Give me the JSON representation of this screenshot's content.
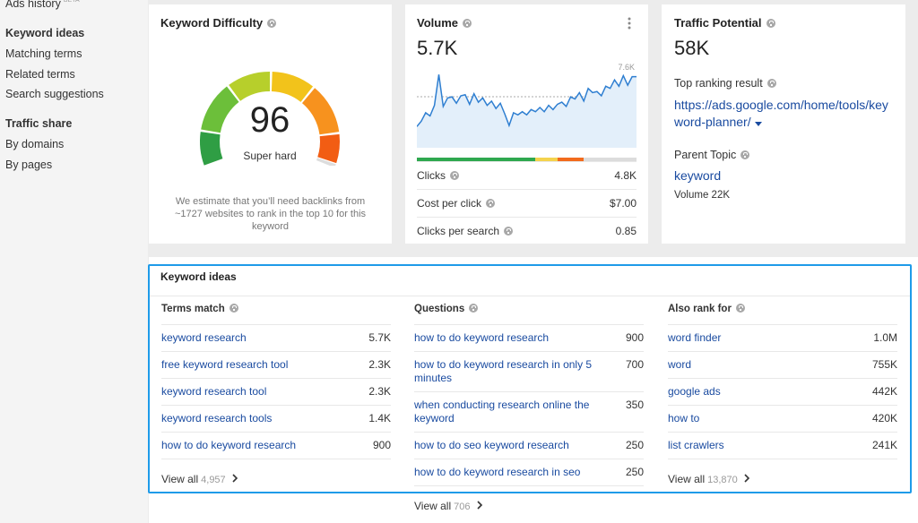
{
  "sidebar": {
    "top_item": {
      "label": "Ads history",
      "badge": "BETA"
    },
    "sections": [
      {
        "heading": "Keyword ideas",
        "items": [
          "Matching terms",
          "Related terms",
          "Search suggestions"
        ]
      },
      {
        "heading": "Traffic share",
        "items": [
          "By domains",
          "By pages"
        ]
      }
    ]
  },
  "difficulty": {
    "title": "Keyword Difficulty",
    "score": "96",
    "label": "Super hard",
    "note": "We estimate that you’ll need backlinks from ~1727 websites to rank in the top 10 for this keyword"
  },
  "volume": {
    "title": "Volume",
    "value": "5.7K",
    "trend": {
      "max": {
        "value": 7600,
        "label": "7.6K"
      },
      "values": [
        2000,
        2500,
        3300,
        3000,
        4000,
        6900,
        3900,
        4700,
        4800,
        4200,
        4900,
        5000,
        4100,
        5100,
        4300,
        4700,
        4000,
        4400,
        3700,
        4200,
        3200,
        2100,
        3300,
        3100,
        3400,
        3100,
        3600,
        3400,
        3800,
        3400,
        4000,
        3600,
        4100,
        4300,
        3900,
        4800,
        4600,
        5200,
        4400,
        5600,
        5200,
        5300,
        4900,
        5800,
        5600,
        6400,
        5800,
        6800,
        5900,
        6700,
        6700
      ]
    },
    "metrics": [
      [
        "Clicks",
        "4.8K"
      ],
      [
        "Cost per click",
        "$7.00"
      ],
      [
        "Clicks per search",
        "0.85"
      ]
    ]
  },
  "traffic_potential": {
    "title": "Traffic Potential",
    "value": "58K",
    "top_result_label": "Top ranking result",
    "top_result_url": "https://ads.google.com/home/tools/keyword-planner/",
    "parent_topic_label": "Parent Topic",
    "parent_topic": "keyword",
    "parent_volume": "Volume 22K"
  },
  "keyword_ideas": {
    "title": "Keyword ideas",
    "columns": [
      {
        "header": "Terms match",
        "rows": [
          [
            "keyword research",
            "5.7K"
          ],
          [
            "free keyword research tool",
            "2.3K"
          ],
          [
            "keyword research tool",
            "2.3K"
          ],
          [
            "keyword research tools",
            "1.4K"
          ],
          [
            "how to do keyword research",
            "900"
          ]
        ],
        "view_all": {
          "label": "View all",
          "count": "4,957"
        }
      },
      {
        "header": "Questions",
        "rows": [
          [
            "how to do keyword research",
            "900"
          ],
          [
            "how to do keyword research in only 5 minutes",
            "700"
          ],
          [
            "when conducting research online the keyword",
            "350"
          ],
          [
            "how to do seo keyword research",
            "250"
          ],
          [
            "how to do keyword research in seo",
            "250"
          ]
        ],
        "view_all": {
          "label": "View all",
          "count": "706"
        }
      },
      {
        "header": "Also rank for",
        "rows": [
          [
            "word finder",
            "1.0M"
          ],
          [
            "word",
            "755K"
          ],
          [
            "google ads",
            "442K"
          ],
          [
            "how to",
            "420K"
          ],
          [
            "list crawlers",
            "241K"
          ]
        ],
        "view_all": {
          "label": "View all",
          "count": "13,870"
        }
      }
    ]
  }
}
